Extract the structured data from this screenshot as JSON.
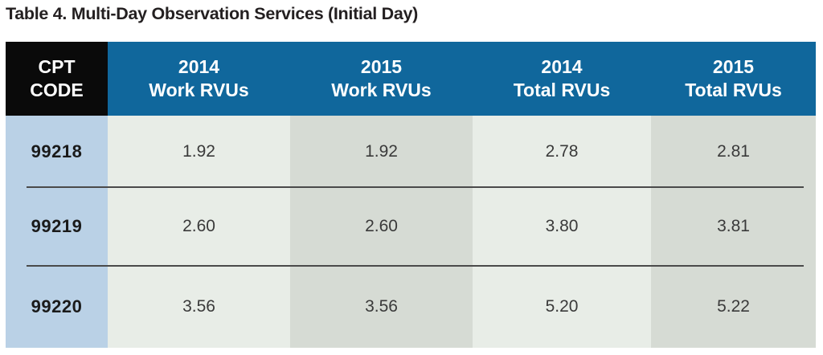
{
  "title": "Table 4. Multi-Day Observation Services (Initial Day)",
  "table": {
    "header": {
      "cpt_line1": "CPT",
      "cpt_line2": "CODE",
      "columns": [
        {
          "line1": "2014",
          "line2": "Work RVUs"
        },
        {
          "line1": "2015",
          "line2": "Work RVUs"
        },
        {
          "line1": "2014",
          "line2": "Total RVUs"
        },
        {
          "line1": "2015",
          "line2": "Total RVUs"
        }
      ]
    },
    "rows": [
      {
        "code": "99218",
        "values": [
          "1.92",
          "1.92",
          "2.78",
          "2.81"
        ]
      },
      {
        "code": "99219",
        "values": [
          "2.60",
          "2.60",
          "3.80",
          "3.81"
        ]
      },
      {
        "code": "99220",
        "values": [
          "3.56",
          "3.56",
          "5.20",
          "5.22"
        ]
      }
    ]
  },
  "colors": {
    "header_blue": "#10679c",
    "header_black": "#0a0a0a",
    "cpt_column_blue": "#bad1e6",
    "column_light": "#e8ede7",
    "column_dark": "#d6dbd4",
    "row_divider": "#4a4a4a",
    "header_text": "#ffffff",
    "title_text": "#242021",
    "data_text": "#3a3a3a"
  }
}
